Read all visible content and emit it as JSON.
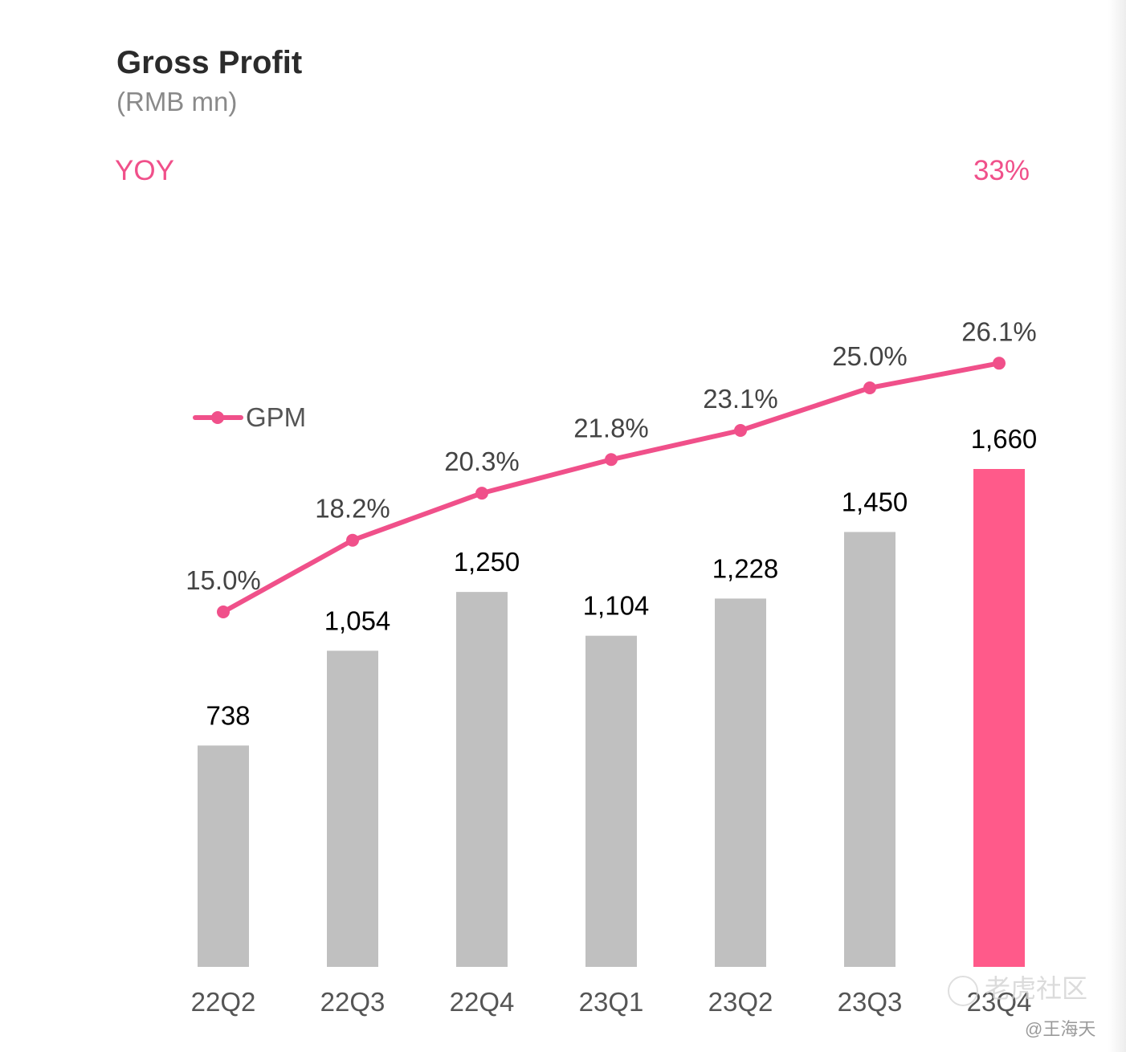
{
  "header": {
    "title": "Gross Profit",
    "subtitle": "(RMB mn)",
    "yoy_label": "YOY",
    "yoy_value": "33%"
  },
  "colors": {
    "bar": "#c0c0c0",
    "bar_highlight": "#ff5a8a",
    "line": "#f0508a",
    "text_dark": "#000000",
    "text_mid": "#444444",
    "axis_text": "#555555"
  },
  "watermark": {
    "text": "老虎社区",
    "author": "@王海天",
    "icon": "tiger-community-logo-icon"
  },
  "chart_data": {
    "type": "bar",
    "title": "Gross Profit",
    "categories": [
      "22Q2",
      "22Q3",
      "22Q4",
      "23Q1",
      "23Q2",
      "23Q3",
      "23Q4"
    ],
    "series": [
      {
        "type": "bar",
        "values": [
          738,
          1054,
          1250,
          1104,
          1228,
          1450,
          1660
        ],
        "labels": [
          "738",
          "1,054",
          "1,250",
          "1,104",
          "1,228",
          "1,450",
          "1,660"
        ],
        "highlight_index": 6
      },
      {
        "name": "GPM",
        "type": "line",
        "values": [
          15.0,
          18.2,
          20.3,
          21.8,
          23.1,
          25.0,
          26.1
        ],
        "labels": [
          "15.0%",
          "18.2%",
          "20.3%",
          "21.8%",
          "23.1%",
          "25.0%",
          "26.1%"
        ]
      }
    ],
    "legend": {
      "entries": [
        "GPM"
      ],
      "position": "left"
    },
    "grid": false
  }
}
